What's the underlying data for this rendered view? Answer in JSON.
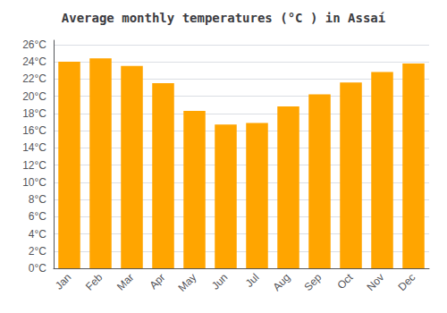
{
  "chart_data": {
    "type": "bar",
    "title": "Average monthly temperatures (°C ) in Assaí",
    "categories": [
      "Jan",
      "Feb",
      "Mar",
      "Apr",
      "May",
      "Jun",
      "Jul",
      "Aug",
      "Sep",
      "Oct",
      "Nov",
      "Dec"
    ],
    "values": [
      24.0,
      24.4,
      23.5,
      21.5,
      18.3,
      16.7,
      16.9,
      18.8,
      20.2,
      21.6,
      22.8,
      23.8
    ],
    "color": "#FFA500",
    "ylim": [
      0,
      26.5
    ],
    "yticks": [
      {
        "value": 0,
        "label": "0°C"
      },
      {
        "value": 2,
        "label": "2°C"
      },
      {
        "value": 4,
        "label": "4°C"
      },
      {
        "value": 6,
        "label": "6°C"
      },
      {
        "value": 8,
        "label": "8°C"
      },
      {
        "value": 10,
        "label": "10°C"
      },
      {
        "value": 12,
        "label": "12°C"
      },
      {
        "value": 14,
        "label": "14°C"
      },
      {
        "value": 16,
        "label": "16°C"
      },
      {
        "value": 18,
        "label": "18°C"
      },
      {
        "value": 20,
        "label": "20°C"
      },
      {
        "value": 22,
        "label": "22°C"
      },
      {
        "value": 24,
        "label": "24°C"
      },
      {
        "value": 26,
        "label": "26°C"
      }
    ],
    "grid": true
  }
}
